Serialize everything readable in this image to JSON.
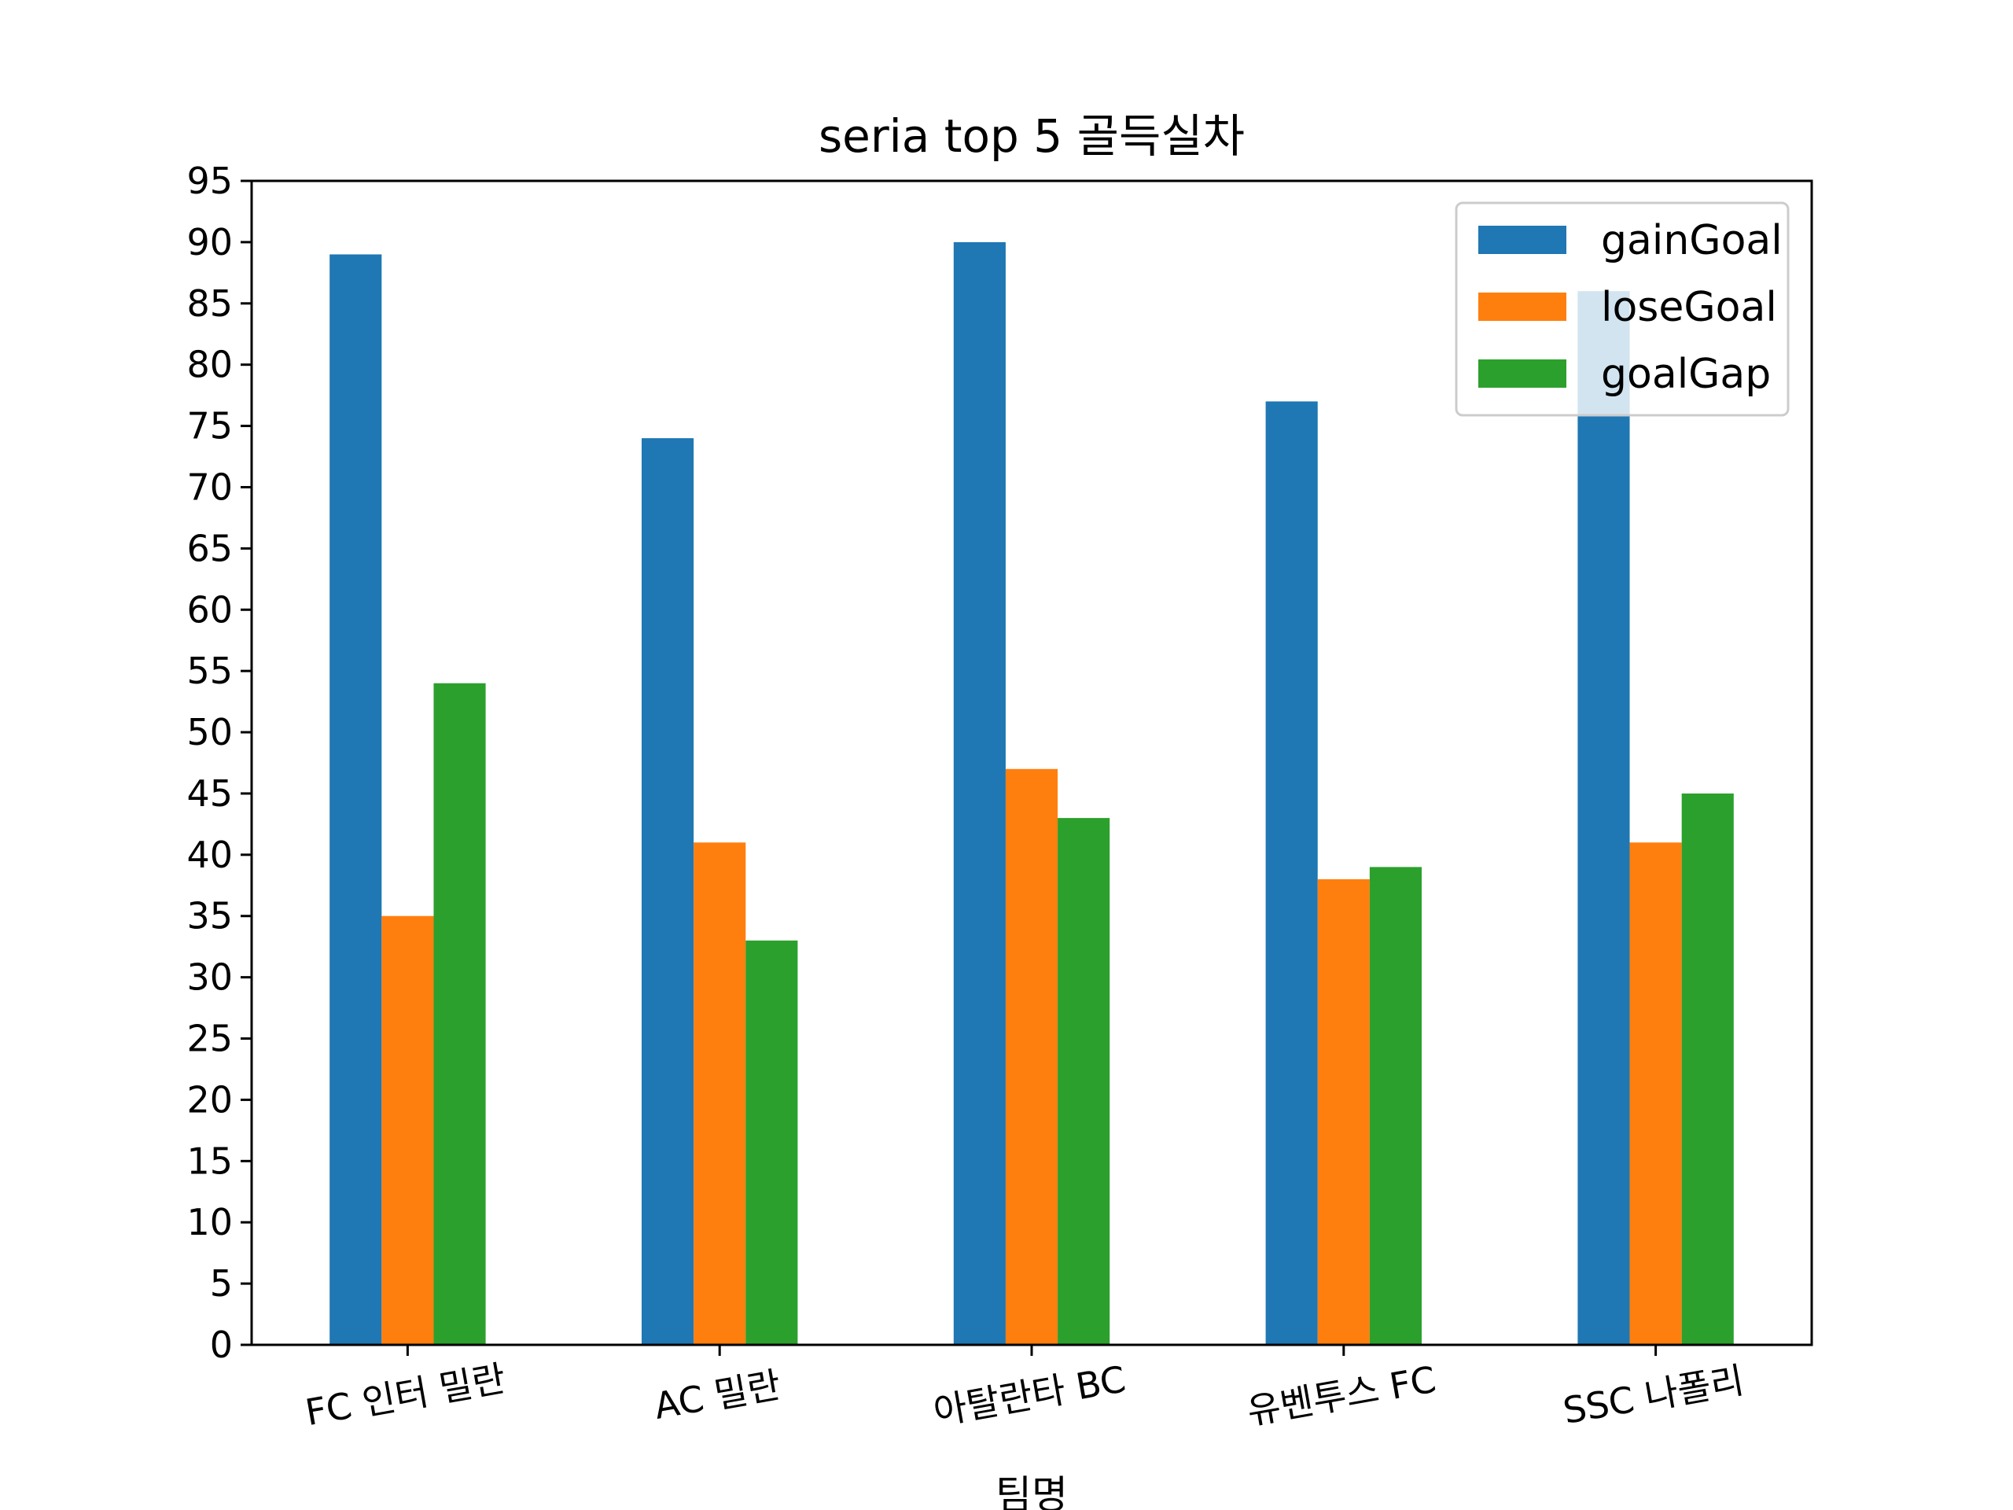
{
  "chart_data": {
    "type": "bar",
    "title": "seria top 5 골득실차",
    "xlabel": "팀명",
    "ylabel": "",
    "ylim": [
      0,
      95
    ],
    "yticks": [
      0,
      5,
      10,
      15,
      20,
      25,
      30,
      35,
      40,
      45,
      50,
      55,
      60,
      65,
      70,
      75,
      80,
      85,
      90,
      95
    ],
    "categories": [
      "FC 인터 밀란",
      "AC 밀란",
      "아탈란타 BC",
      "유벤투스 FC",
      "SSC 나폴리"
    ],
    "series": [
      {
        "name": "gainGoal",
        "color": "#1f77b4",
        "values": [
          89,
          74,
          90,
          77,
          86
        ]
      },
      {
        "name": "loseGoal",
        "color": "#ff7f0e",
        "values": [
          35,
          41,
          47,
          38,
          41
        ]
      },
      {
        "name": "goalGap",
        "color": "#2ca02c",
        "values": [
          54,
          33,
          43,
          39,
          45
        ]
      }
    ],
    "legend_position": "top-right",
    "grid": false,
    "x_tick_rotation": "slanted"
  }
}
